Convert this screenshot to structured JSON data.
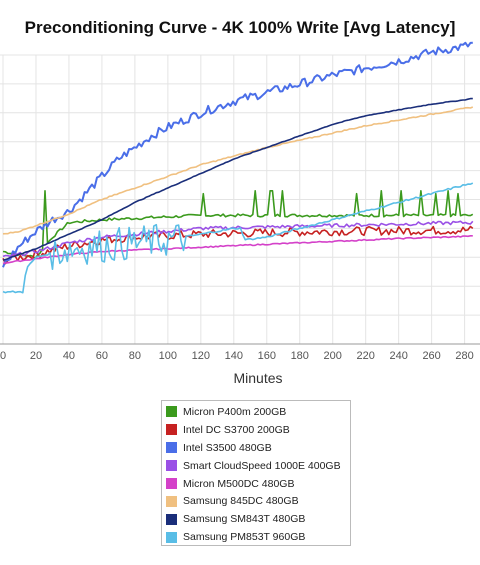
{
  "chart_data": {
    "type": "line",
    "title": "Preconditioning Curve - 4K 100% Write [Avg Latency]",
    "xlabel": "Minutes",
    "ylabel": "",
    "x_ticks": [
      0,
      20,
      40,
      60,
      80,
      100,
      120,
      140,
      160,
      180,
      200,
      220,
      240,
      260,
      280
    ],
    "x_tick_labels": [
      "0",
      "20",
      "40",
      "60",
      "80",
      "100",
      "120",
      "140",
      "160",
      "180",
      "200",
      "220",
      "240",
      "260",
      "280"
    ],
    "xlim": [
      0,
      285
    ],
    "ylim": [
      0,
      10
    ],
    "y_gridlines": [
      0,
      1,
      2,
      3,
      4,
      5,
      6,
      7,
      8,
      9,
      10
    ],
    "grid": true,
    "legend_position": "bottom",
    "series": [
      {
        "name": "Micron P400m 200GB",
        "color": "#3b9a1d",
        "x": [
          0,
          10,
          20,
          30,
          40,
          60,
          80,
          100,
          120,
          140,
          160,
          200,
          240,
          280,
          285
        ],
        "y": [
          3.2,
          3.1,
          3.0,
          3.7,
          4.2,
          4.3,
          4.35,
          4.4,
          4.45,
          4.45,
          4.45,
          4.45,
          4.45,
          4.45,
          4.45
        ],
        "spikes": [
          [
            26,
            5.3
          ],
          [
            122,
            5.2
          ],
          [
            153,
            5.3
          ],
          [
            162,
            5.3
          ],
          [
            164,
            5.3
          ],
          [
            170,
            5.3
          ],
          [
            214,
            5.2
          ],
          [
            230,
            5.3
          ],
          [
            242,
            5.3
          ],
          [
            263,
            5.2
          ],
          [
            276,
            5.2
          ],
          [
            254,
            5.3
          ],
          [
            270,
            5.3
          ],
          [
            286,
            5.3
          ]
        ],
        "noise": 0.05
      },
      {
        "name": "Intel DC S3700 200GB",
        "color": "#c62121",
        "x": [
          0,
          20,
          40,
          60,
          80,
          100,
          120,
          160,
          200,
          240,
          280,
          285
        ],
        "y": [
          2.9,
          3.1,
          3.4,
          3.6,
          3.7,
          3.75,
          3.8,
          3.85,
          3.9,
          3.92,
          3.94,
          3.95
        ],
        "noise": 0.15
      },
      {
        "name": "Intel S3500 480GB",
        "color": "#4a6ee8",
        "x": [
          0,
          10,
          20,
          30,
          40,
          50,
          60,
          70,
          80,
          90,
          100,
          120,
          140,
          160,
          180,
          200,
          220,
          240,
          260,
          280,
          285
        ],
        "y": [
          2.7,
          3.4,
          3.9,
          4.3,
          4.6,
          5.2,
          5.8,
          6.4,
          6.8,
          7.2,
          7.5,
          8.0,
          8.4,
          8.7,
          9.0,
          9.3,
          9.55,
          9.8,
          10.1,
          10.3,
          10.4
        ],
        "noise": 0.15
      },
      {
        "name": "Smart CloudSpeed 1000E 400GB",
        "color": "#9a50e6",
        "x": [
          0,
          20,
          40,
          60,
          80,
          100,
          120,
          160,
          200,
          240,
          280,
          285
        ],
        "y": [
          3.0,
          3.2,
          3.5,
          3.7,
          3.8,
          3.9,
          4.0,
          4.05,
          4.1,
          4.15,
          4.2,
          4.2
        ],
        "noise": 0.06
      },
      {
        "name": "Micron M500DC 480GB",
        "color": "#d441c9",
        "x": [
          0,
          20,
          40,
          60,
          80,
          100,
          120,
          160,
          200,
          240,
          280,
          285
        ],
        "y": [
          2.8,
          2.95,
          3.1,
          3.2,
          3.25,
          3.3,
          3.35,
          3.45,
          3.55,
          3.65,
          3.72,
          3.75
        ],
        "noise": 0.02
      },
      {
        "name": "Samsung 845DC 480GB",
        "color": "#f0c080",
        "x": [
          0,
          10,
          20,
          30,
          40,
          60,
          80,
          100,
          120,
          140,
          160,
          180,
          200,
          220,
          240,
          260,
          280,
          285
        ],
        "y": [
          3.8,
          3.9,
          4.1,
          4.3,
          4.5,
          5.0,
          5.4,
          5.8,
          6.2,
          6.5,
          6.8,
          7.05,
          7.3,
          7.55,
          7.75,
          7.95,
          8.15,
          8.2
        ],
        "noise": 0.02
      },
      {
        "name": "Samsung SM843T 480GB",
        "color": "#1a2e7a",
        "x": [
          0,
          20,
          40,
          60,
          80,
          100,
          120,
          140,
          160,
          180,
          200,
          220,
          240,
          260,
          280,
          285
        ],
        "y": [
          2.9,
          3.3,
          3.8,
          4.3,
          4.9,
          5.4,
          5.9,
          6.4,
          6.8,
          7.2,
          7.6,
          7.9,
          8.1,
          8.3,
          8.45,
          8.5
        ],
        "noise": 0.01
      },
      {
        "name": "Samsung PM853T 960GB",
        "color": "#59bde6",
        "x": [
          0,
          12,
          13,
          14,
          20,
          40,
          60,
          80,
          100,
          110,
          120,
          130,
          140,
          145,
          146,
          160,
          180,
          200,
          220,
          240,
          260,
          280,
          285
        ],
        "y": [
          1.8,
          1.8,
          2.2,
          2.6,
          3.0,
          3.3,
          3.4,
          3.5,
          3.6,
          3.7,
          3.8,
          3.9,
          4.0,
          4.0,
          3.6,
          3.7,
          4.0,
          4.3,
          4.6,
          4.9,
          5.2,
          5.5,
          5.55
        ],
        "noise_range": [
          30,
          110
        ],
        "noise": 0.6
      }
    ]
  }
}
